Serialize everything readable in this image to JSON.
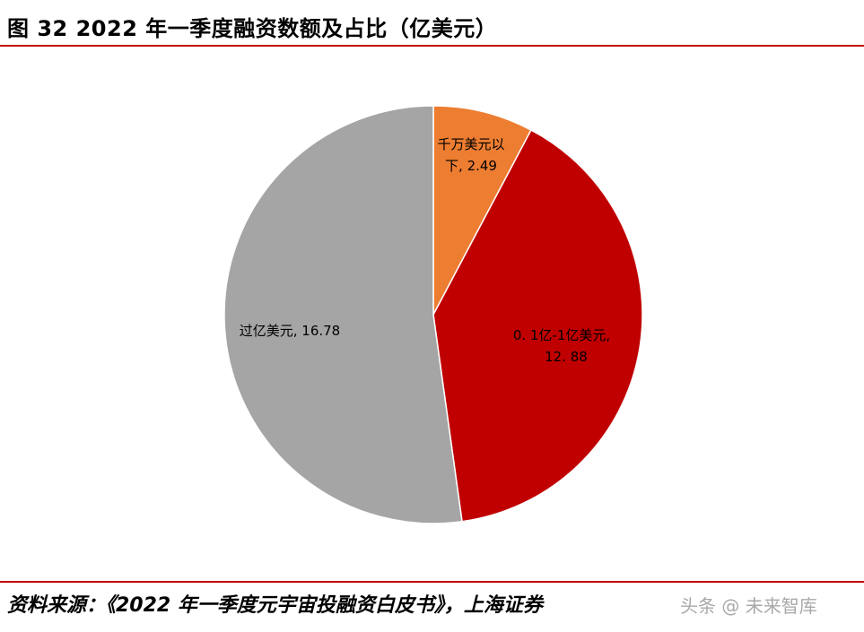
{
  "header": {
    "title": "图 32 2022 年一季度融资数额及占比（亿美元）"
  },
  "chart_data": {
    "type": "pie",
    "title": "图 32 2022 年一季度融资数额及占比（亿美元）",
    "slices": [
      {
        "name": "千万美元以下",
        "value": 2.49,
        "label_line1": "千万美元以",
        "label_line2": "下, 2.49",
        "color": "#ed7d31"
      },
      {
        "name": "0.1亿-1亿美元",
        "value": 12.88,
        "label_line1": "0. 1亿-1亿美元,",
        "label_line2": "12. 88",
        "color": "#c00000"
      },
      {
        "name": "过亿美元",
        "value": 16.78,
        "label_line1": "过亿美元, 16.78",
        "label_line2": "",
        "color": "#a5a5a5"
      }
    ],
    "start_angle": "12 o'clock",
    "direction": "clockwise",
    "legend": "none"
  },
  "footer": {
    "source": "资料来源：《2022 年一季度元宇宙投融资白皮书》，上海证券",
    "watermark": "头条 @ 未来智库"
  }
}
